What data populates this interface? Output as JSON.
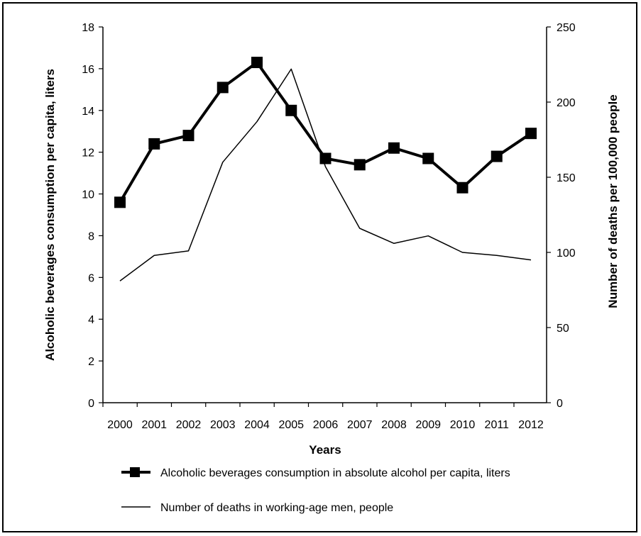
{
  "chart_data": {
    "type": "line",
    "x": [
      "2000",
      "2001",
      "2002",
      "2003",
      "2004",
      "2005",
      "2006",
      "2007",
      "2008",
      "2009",
      "2010",
      "2011",
      "2012"
    ],
    "xlabel": "Years",
    "y_left": {
      "label": "Alcoholic beverages consumption per capita, liters",
      "range": [
        0,
        18
      ],
      "ticks": [
        0,
        2,
        4,
        6,
        8,
        10,
        12,
        14,
        16,
        18
      ]
    },
    "y_right": {
      "label": "Number of deaths per 100,000 people",
      "range": [
        0,
        250
      ],
      "ticks": [
        0,
        50,
        100,
        150,
        200,
        250
      ]
    },
    "series": [
      {
        "name": "Alcoholic beverages consumption in absolute alcohol per capita, liters",
        "axis": "left",
        "style": "thick-line-square-markers",
        "values": [
          9.6,
          12.4,
          12.8,
          15.1,
          16.3,
          14.0,
          11.7,
          11.4,
          12.2,
          11.7,
          10.3,
          11.8,
          12.9
        ]
      },
      {
        "name": "Number of deaths in working-age men, people",
        "axis": "right",
        "style": "thin-line",
        "values": [
          81,
          98,
          101,
          160,
          187,
          222,
          157,
          116,
          106,
          111,
          100,
          98,
          95
        ]
      }
    ],
    "grid": false,
    "legend_position": "bottom"
  },
  "colors": {
    "line": "#000000",
    "background": "#ffffff"
  }
}
